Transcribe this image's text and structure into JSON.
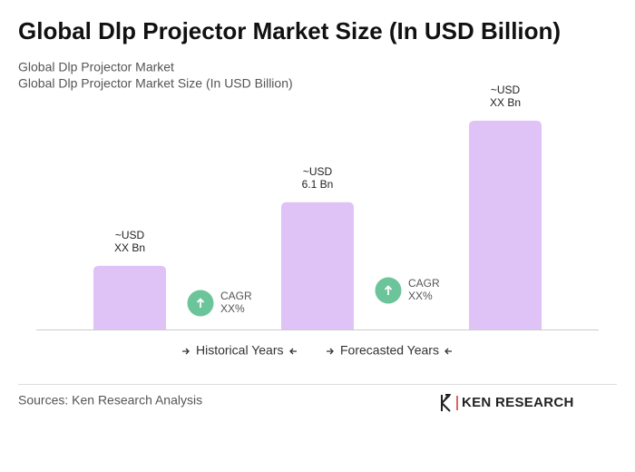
{
  "chart_data": {
    "type": "bar",
    "title": "Global Dlp Projector Market Size (In USD Billion)",
    "subtitle": [
      "Global Dlp Projector Market",
      "Global Dlp Projector Market Size (In USD Billion)"
    ],
    "categories": [
      null,
      null,
      null
    ],
    "values": [
      3.05,
      6.1,
      10.0
    ],
    "value_labels": [
      [
        "~USD",
        "XX Bn"
      ],
      [
        "~USD",
        "6.1 Bn"
      ],
      [
        "~USD",
        "XX Bn"
      ]
    ],
    "color": "#dfc3f6",
    "annotations": [
      [
        "CAGR",
        "XX%"
      ],
      [
        "CAGR",
        "XX%"
      ]
    ],
    "annotation_color": "#6cc49b",
    "legend": [
      "Historical Years",
      "Forecasted Years"
    ],
    "source": "Sources: Ken Research Analysis",
    "brand": "KEN RESEARCH"
  }
}
